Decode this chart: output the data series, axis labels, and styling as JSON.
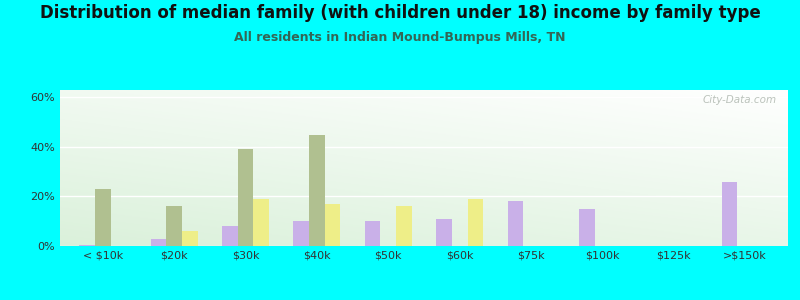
{
  "title": "Distribution of median family (with children under 18) income by family type",
  "subtitle": "All residents in Indian Mound-Bumpus Mills, TN",
  "categories": [
    "< $10k",
    "$20k",
    "$30k",
    "$40k",
    "$50k",
    "$60k",
    "$75k",
    "$100k",
    "$125k",
    ">$150k"
  ],
  "married_couple": [
    0.5,
    3,
    8,
    10,
    10,
    11,
    18,
    15,
    0,
    26
  ],
  "male_no_wife": [
    23,
    16,
    39,
    45,
    0,
    0,
    0,
    0,
    0,
    0
  ],
  "female_no_husband": [
    0,
    6,
    19,
    17,
    16,
    19,
    0,
    0,
    0,
    0
  ],
  "married_color": "#c9b0e8",
  "male_color": "#b0c090",
  "female_color": "#eeee88",
  "bg_color": "#00ffff",
  "ylabel_vals": [
    0,
    20,
    40,
    60
  ],
  "ylim": [
    0,
    63
  ],
  "bar_width": 0.22,
  "watermark": "City-Data.com",
  "title_fontsize": 12,
  "subtitle_fontsize": 9,
  "subtitle_color": "#336655"
}
